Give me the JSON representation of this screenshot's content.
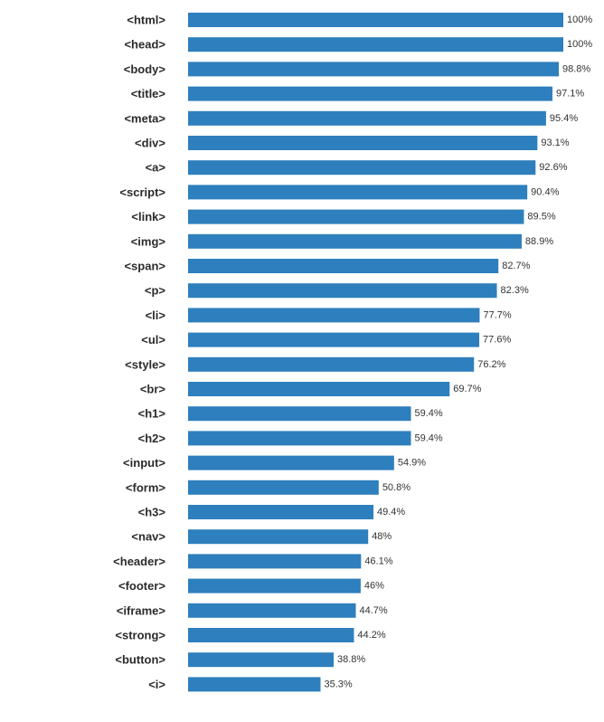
{
  "chart_data": {
    "type": "bar",
    "orientation": "horizontal",
    "categories": [
      "<html>",
      "<head>",
      "<body>",
      "<title>",
      "<meta>",
      "<div>",
      "<a>",
      "<script>",
      "<link>",
      "<img>",
      "<span>",
      "<p>",
      "<li>",
      "<ul>",
      "<style>",
      "<br>",
      "<h1>",
      "<h2>",
      "<input>",
      "<form>",
      "<h3>",
      "<nav>",
      "<header>",
      "<footer>",
      "<iframe>",
      "<strong>",
      "<button>",
      "<i>"
    ],
    "values": [
      100,
      100,
      98.8,
      97.1,
      95.4,
      93.1,
      92.6,
      90.4,
      89.5,
      88.9,
      82.7,
      82.3,
      77.7,
      77.6,
      76.2,
      69.7,
      59.4,
      59.4,
      54.9,
      50.8,
      49.4,
      48,
      46.1,
      46,
      44.7,
      44.2,
      38.8,
      35.3
    ],
    "value_labels": [
      "100%",
      "100%",
      "98.8%",
      "97.1%",
      "95.4%",
      "93.1%",
      "92.6%",
      "90.4%",
      "89.5%",
      "88.9%",
      "82.7%",
      "82.3%",
      "77.7%",
      "77.6%",
      "76.2%",
      "69.7%",
      "59.4%",
      "59.4%",
      "54.9%",
      "50.8%",
      "49.4%",
      "48%",
      "46.1%",
      "46%",
      "44.7%",
      "44.2%",
      "38.8%",
      "35.3%"
    ],
    "xlim": [
      0,
      100
    ],
    "unit": "%",
    "title": "",
    "xlabel": "",
    "ylabel": "",
    "grid": false,
    "bar_color": "#2e7fbd"
  }
}
